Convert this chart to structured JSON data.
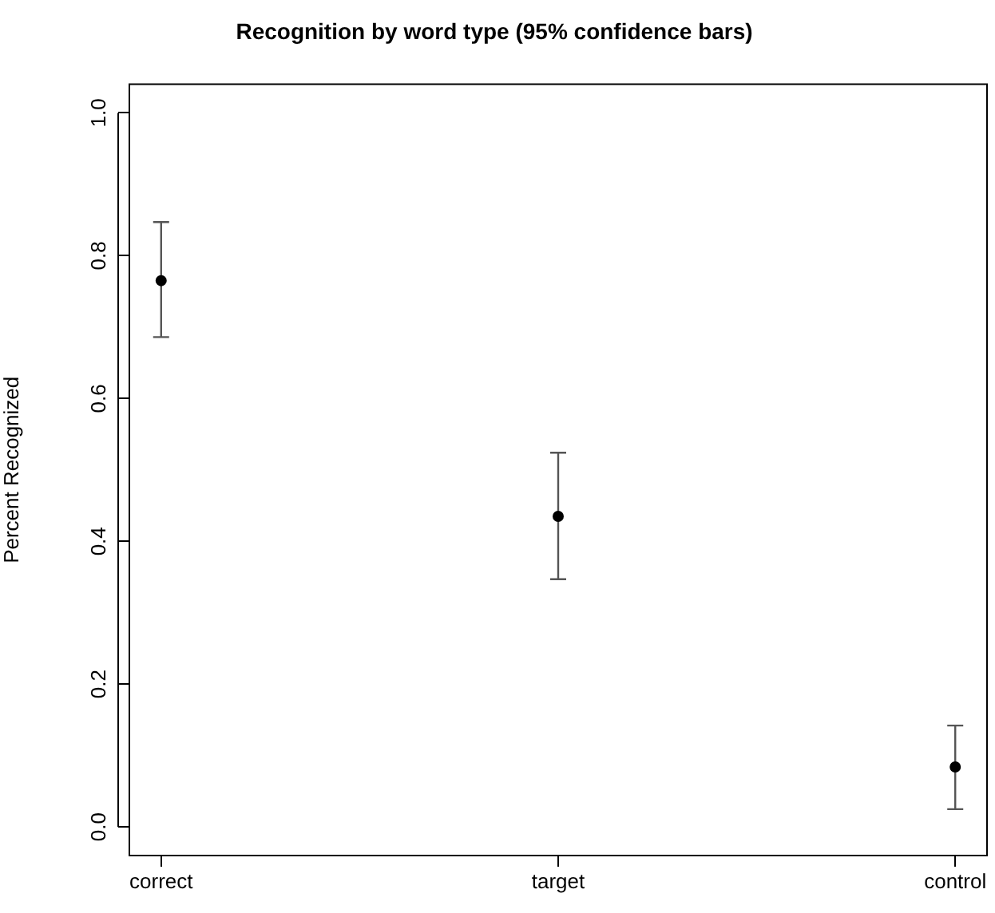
{
  "chart_data": {
    "type": "scatter",
    "title": "Recognition by word type (95% confidence bars)",
    "ylabel": "Percent Recognized",
    "categories": [
      "correct",
      "target",
      "control"
    ],
    "values": [
      0.765,
      0.435,
      0.084
    ],
    "errors": [
      [
        0.686,
        0.847
      ],
      [
        0.347,
        0.524
      ],
      [
        0.025,
        0.142
      ]
    ],
    "color": "#000000",
    "marker": "circle",
    "ylim": [
      -0.04,
      1.04
    ],
    "yticks": [
      {
        "value": 0,
        "label": "0.0"
      },
      {
        "value": 0.2,
        "label": "0.2"
      },
      {
        "value": 0.4,
        "label": "0.4"
      },
      {
        "value": 0.6,
        "label": "0.6"
      },
      {
        "value": 0.8,
        "label": "0.8"
      },
      {
        "value": 1,
        "label": "1.0"
      }
    ],
    "grid": false,
    "legend": false
  }
}
